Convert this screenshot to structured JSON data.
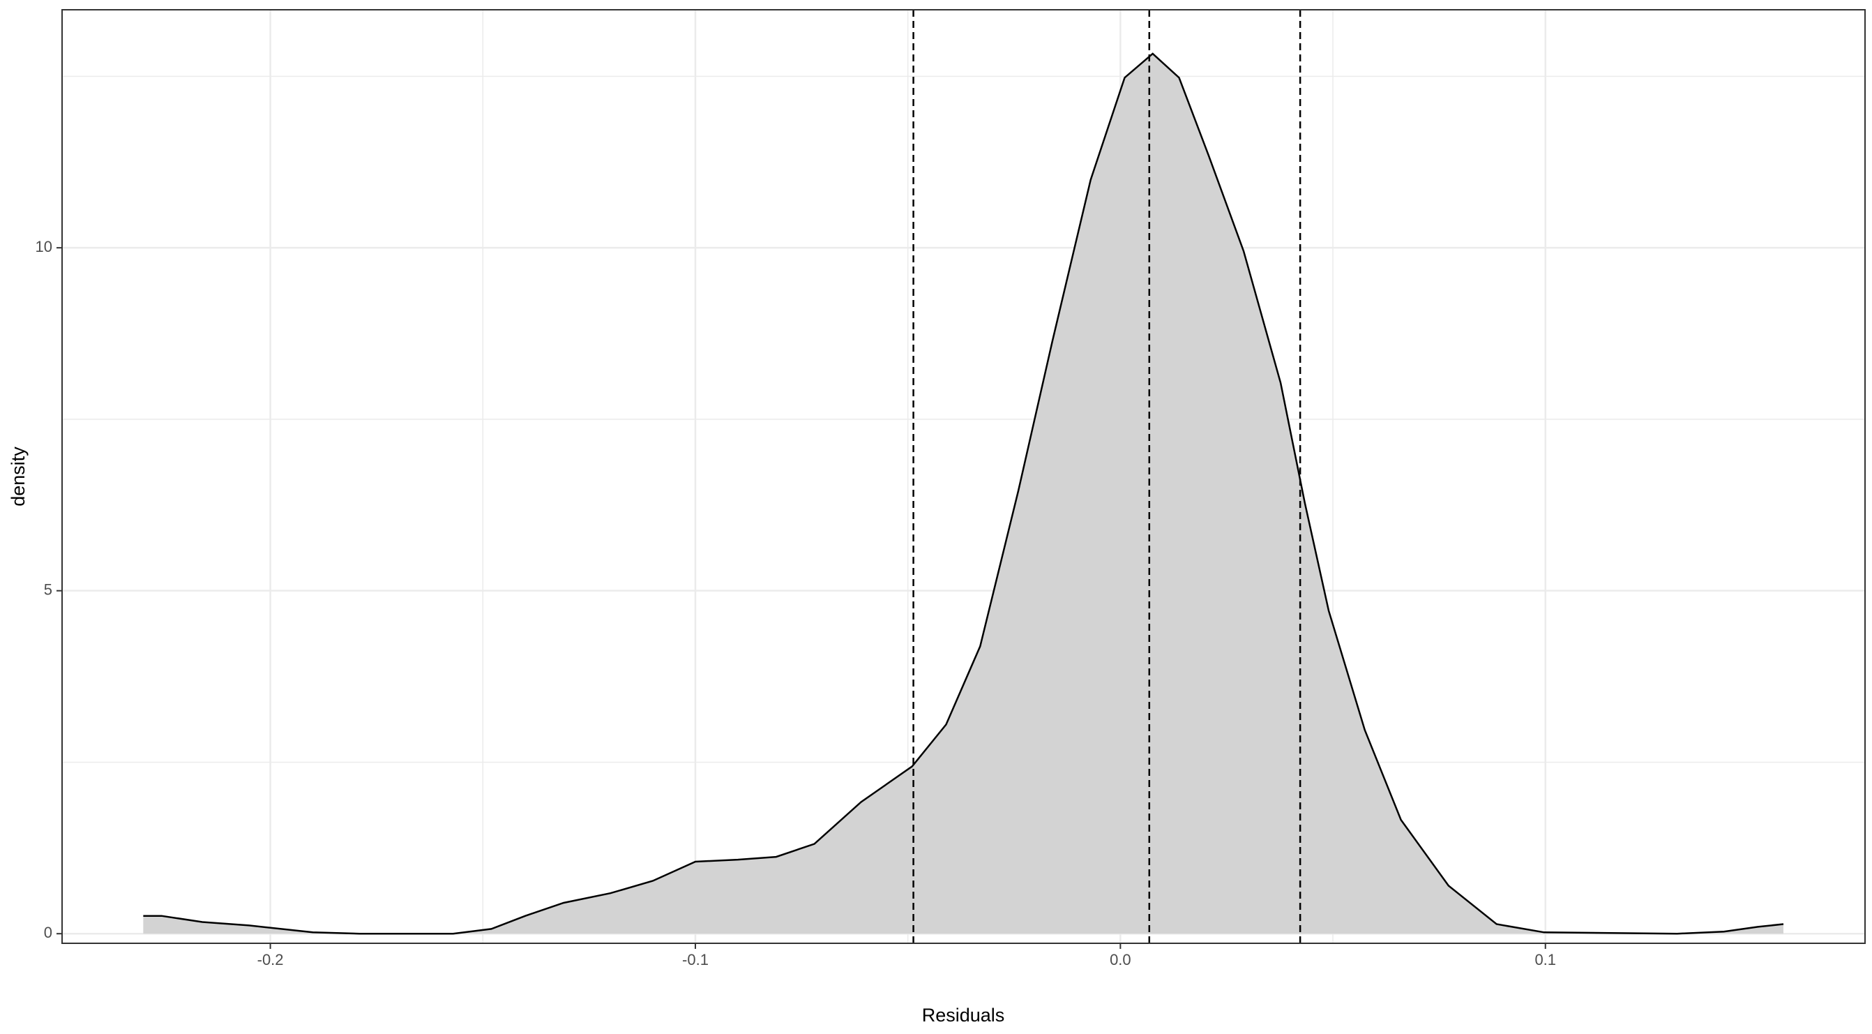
{
  "chart_data": {
    "type": "density",
    "x_label": "Residuals",
    "y_label": "density",
    "x": [
      -0.2299,
      -0.2256,
      -0.216,
      -0.205,
      -0.19,
      -0.179,
      -0.157,
      -0.148,
      -0.14,
      -0.131,
      -0.12,
      -0.11,
      -0.1,
      -0.09,
      -0.081,
      -0.072,
      -0.061,
      -0.049,
      -0.041,
      -0.033,
      -0.024,
      -0.016,
      -0.007,
      0.001,
      0.0076,
      0.0138,
      0.0208,
      0.029,
      0.0377,
      0.0434,
      0.049,
      0.0575,
      0.066,
      0.0772,
      0.0885,
      0.0997,
      0.131,
      0.142,
      0.15,
      0.156
    ],
    "values": [
      0.26,
      0.26,
      0.17,
      0.12,
      0.02,
      0.0,
      0.0,
      0.07,
      0.26,
      0.45,
      0.59,
      0.77,
      1.05,
      1.08,
      1.12,
      1.31,
      1.92,
      2.44,
      3.05,
      4.19,
      6.46,
      8.64,
      10.99,
      12.48,
      12.83,
      12.48,
      11.34,
      9.95,
      8.03,
      6.28,
      4.71,
      2.97,
      1.66,
      0.7,
      0.14,
      0.02,
      0.0,
      0.03,
      0.1,
      0.14
    ],
    "color": "#000000",
    "fill": "#d3d3d3",
    "vlines": [
      -0.0487,
      0.0068,
      0.0423
    ],
    "xlim": [
      -0.249,
      0.1752
    ],
    "ylim": [
      -0.14,
      13.47
    ],
    "xticks": [
      -0.2,
      -0.1,
      {
        "value": 0,
        "label": "0.0"
      },
      0.1
    ],
    "yticks": [
      0,
      5,
      10
    ],
    "minor_xticks": [
      -0.15,
      -0.05,
      0.05
    ],
    "minor_yticks": [
      2.5,
      7.5,
      12.5
    ],
    "grid": true
  }
}
